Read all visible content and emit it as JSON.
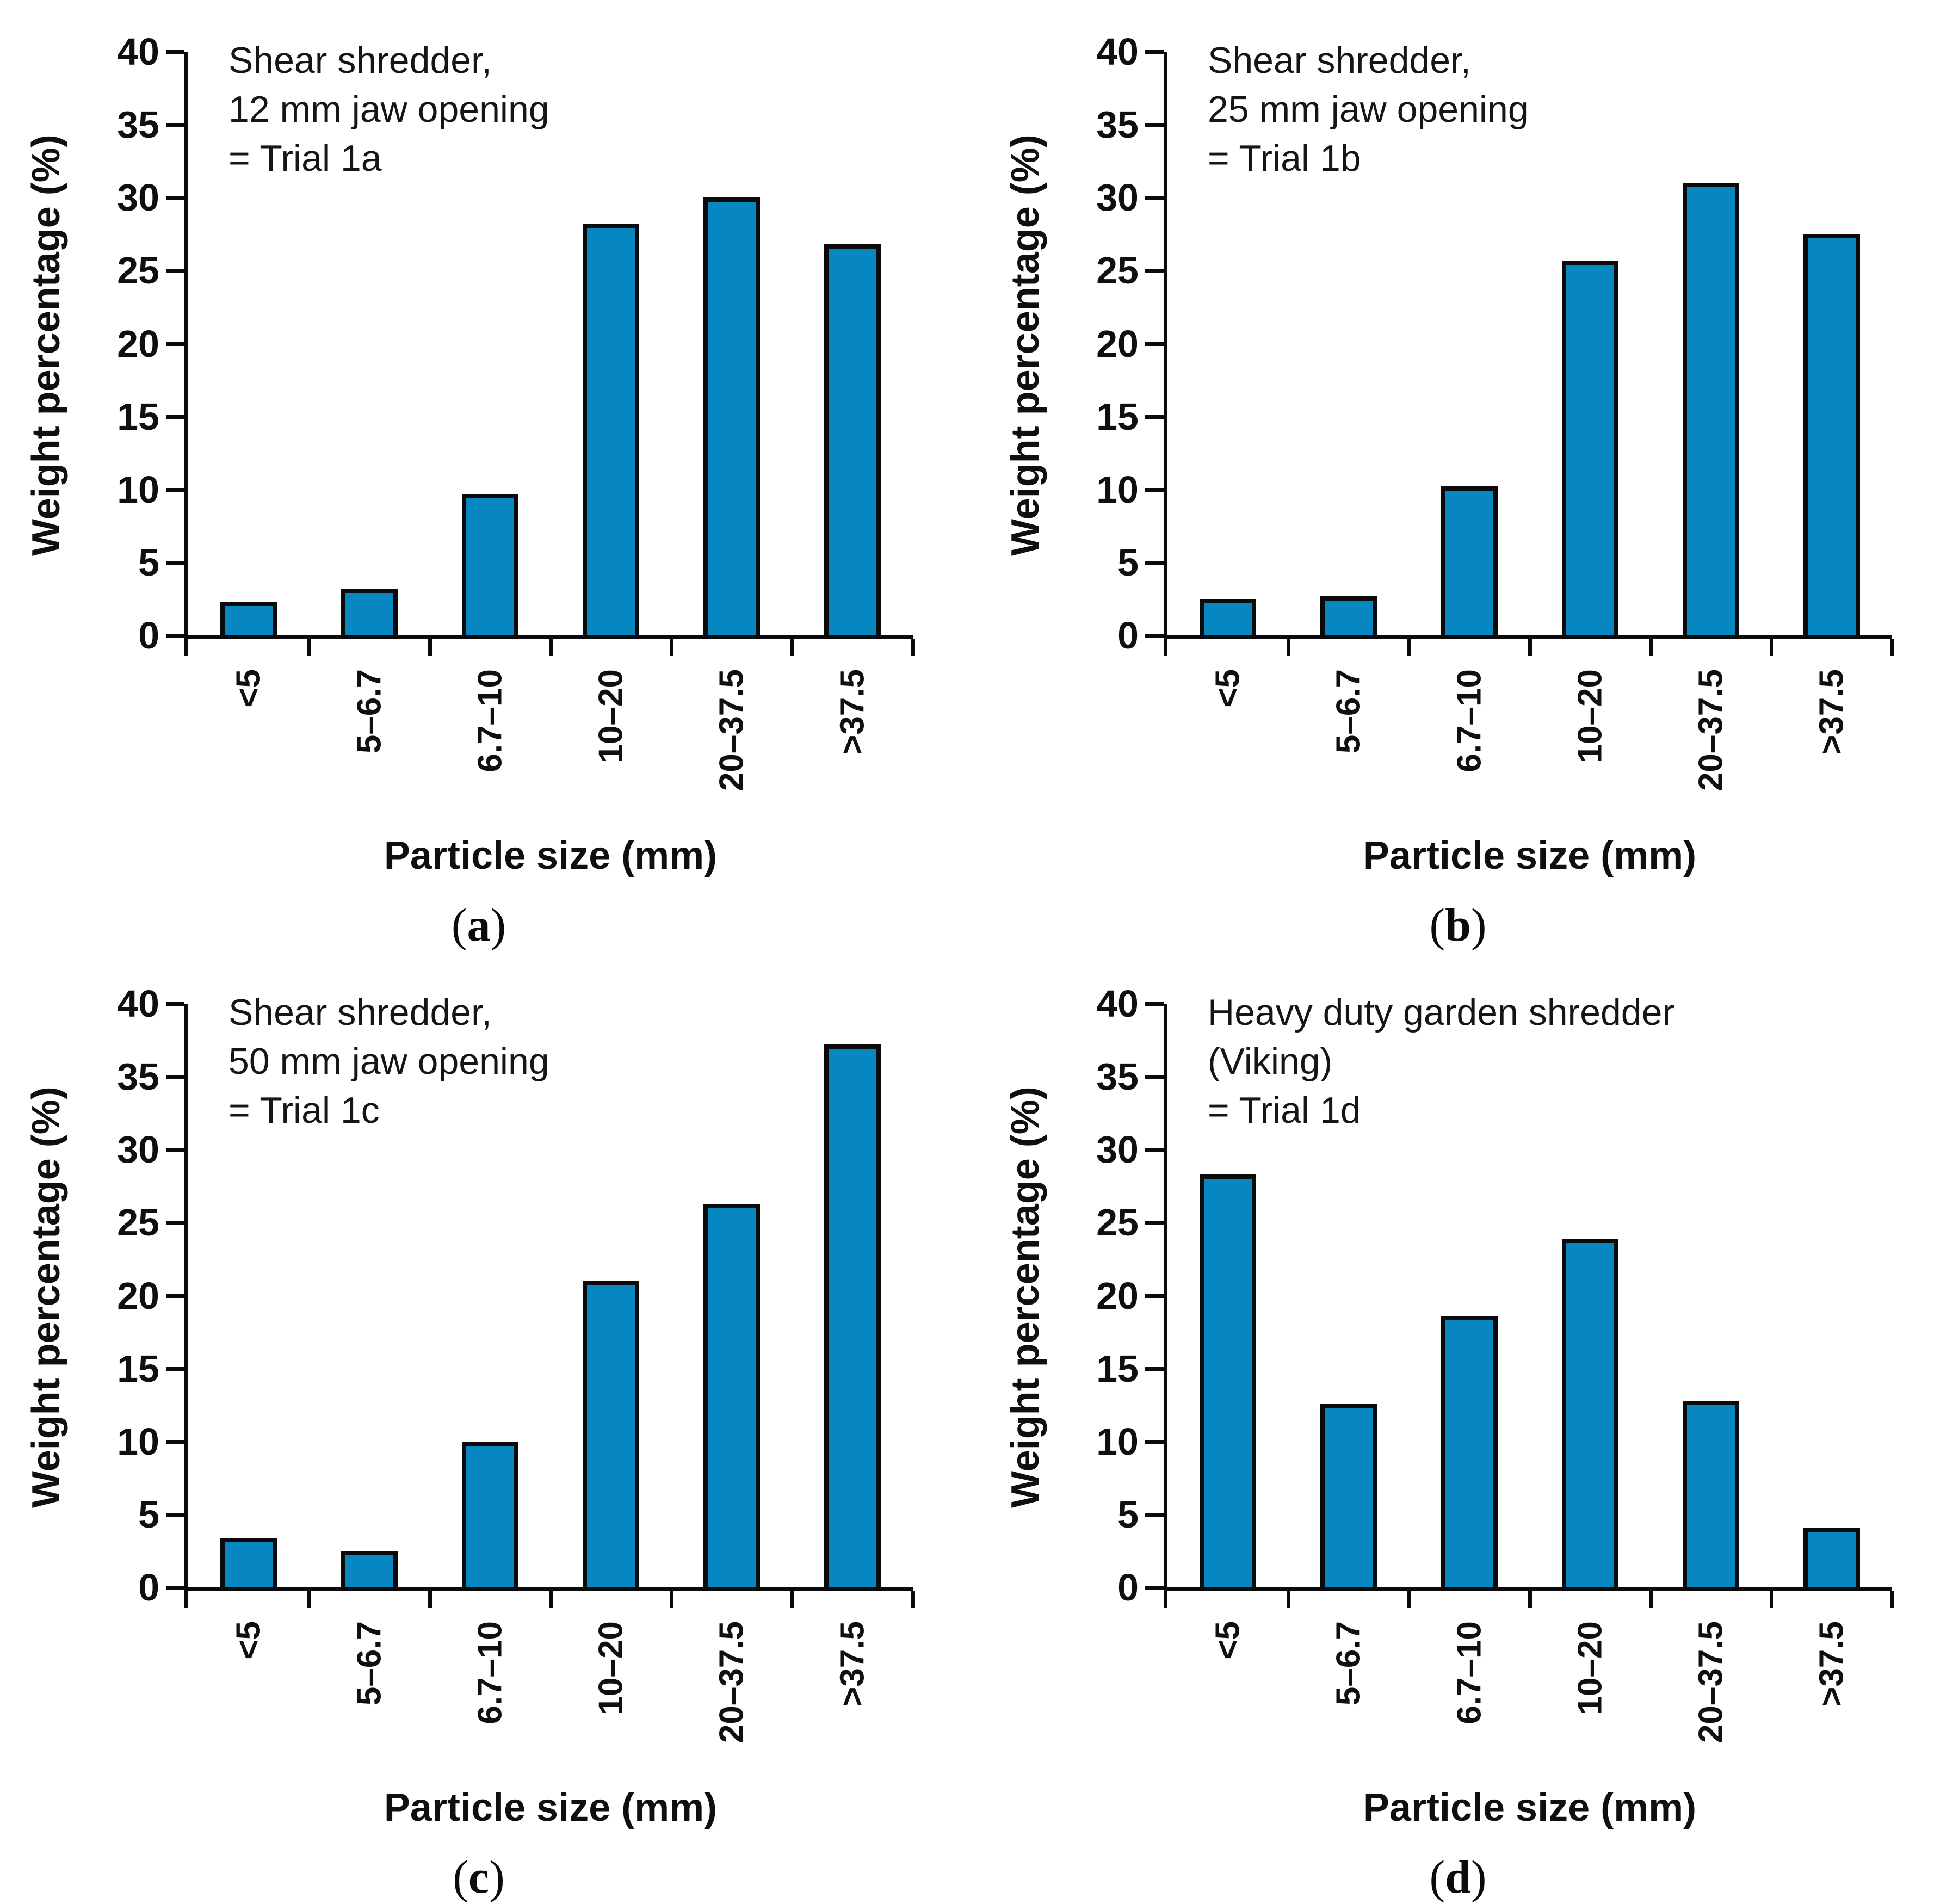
{
  "figure": {
    "paren_open": "(",
    "paren_close": ")"
  },
  "style": {
    "bar_fill": "#0787c1",
    "bar_border": "#0b0b0b",
    "axis_color": "#0b0b0b"
  },
  "chart_data": [
    {
      "type": "bar",
      "panel_letter": "a",
      "title_lines": [
        "Shear shredder,",
        "12 mm jaw opening",
        "= Trial 1a"
      ],
      "categories": [
        "<5",
        "5–6.7",
        "6.7–10",
        "10–20",
        "20–37.5",
        ">37.5"
      ],
      "values": [
        2.3,
        3.2,
        9.7,
        28.2,
        30.0,
        26.8
      ],
      "xlabel": "Particle size (mm)",
      "ylabel": "Weight percentage (%)",
      "ylim": [
        0,
        40
      ],
      "yticks": [
        0,
        5,
        10,
        15,
        20,
        25,
        30,
        35,
        40
      ],
      "grid": false,
      "legend": null
    },
    {
      "type": "bar",
      "panel_letter": "b",
      "title_lines": [
        "Shear shredder,",
        "25 mm jaw opening",
        "= Trial 1b"
      ],
      "categories": [
        "<5",
        "5–6.7",
        "6.7–10",
        "10–20",
        "20–37.5",
        ">37.5"
      ],
      "values": [
        2.5,
        2.7,
        10.2,
        25.7,
        31.0,
        27.5
      ],
      "xlabel": "Particle size (mm)",
      "ylabel": "Weight percentage (%)",
      "ylim": [
        0,
        40
      ],
      "yticks": [
        0,
        5,
        10,
        15,
        20,
        25,
        30,
        35,
        40
      ],
      "grid": false,
      "legend": null
    },
    {
      "type": "bar",
      "panel_letter": "c",
      "title_lines": [
        "Shear shredder,",
        "50 mm jaw opening",
        "= Trial 1c"
      ],
      "categories": [
        "<5",
        "5–6.7",
        "6.7–10",
        "10–20",
        "20–37.5",
        ">37.5"
      ],
      "values": [
        3.4,
        2.5,
        10.0,
        21.0,
        26.3,
        37.2
      ],
      "xlabel": "Particle size (mm)",
      "ylabel": "Weight percentage (%)",
      "ylim": [
        0,
        40
      ],
      "yticks": [
        0,
        5,
        10,
        15,
        20,
        25,
        30,
        35,
        40
      ],
      "grid": false,
      "legend": null
    },
    {
      "type": "bar",
      "panel_letter": "d",
      "title_lines": [
        "Heavy duty garden shredder",
        "(Viking)",
        "= Trial 1d"
      ],
      "categories": [
        "<5",
        "5–6.7",
        "6.7–10",
        "10–20",
        "20–37.5",
        ">37.5"
      ],
      "values": [
        28.3,
        12.6,
        18.6,
        23.9,
        12.8,
        4.1
      ],
      "xlabel": "Particle size (mm)",
      "ylabel": "Weight percentage (%)",
      "ylim": [
        0,
        40
      ],
      "yticks": [
        0,
        5,
        10,
        15,
        20,
        25,
        30,
        35,
        40
      ],
      "grid": false,
      "legend": null
    }
  ]
}
